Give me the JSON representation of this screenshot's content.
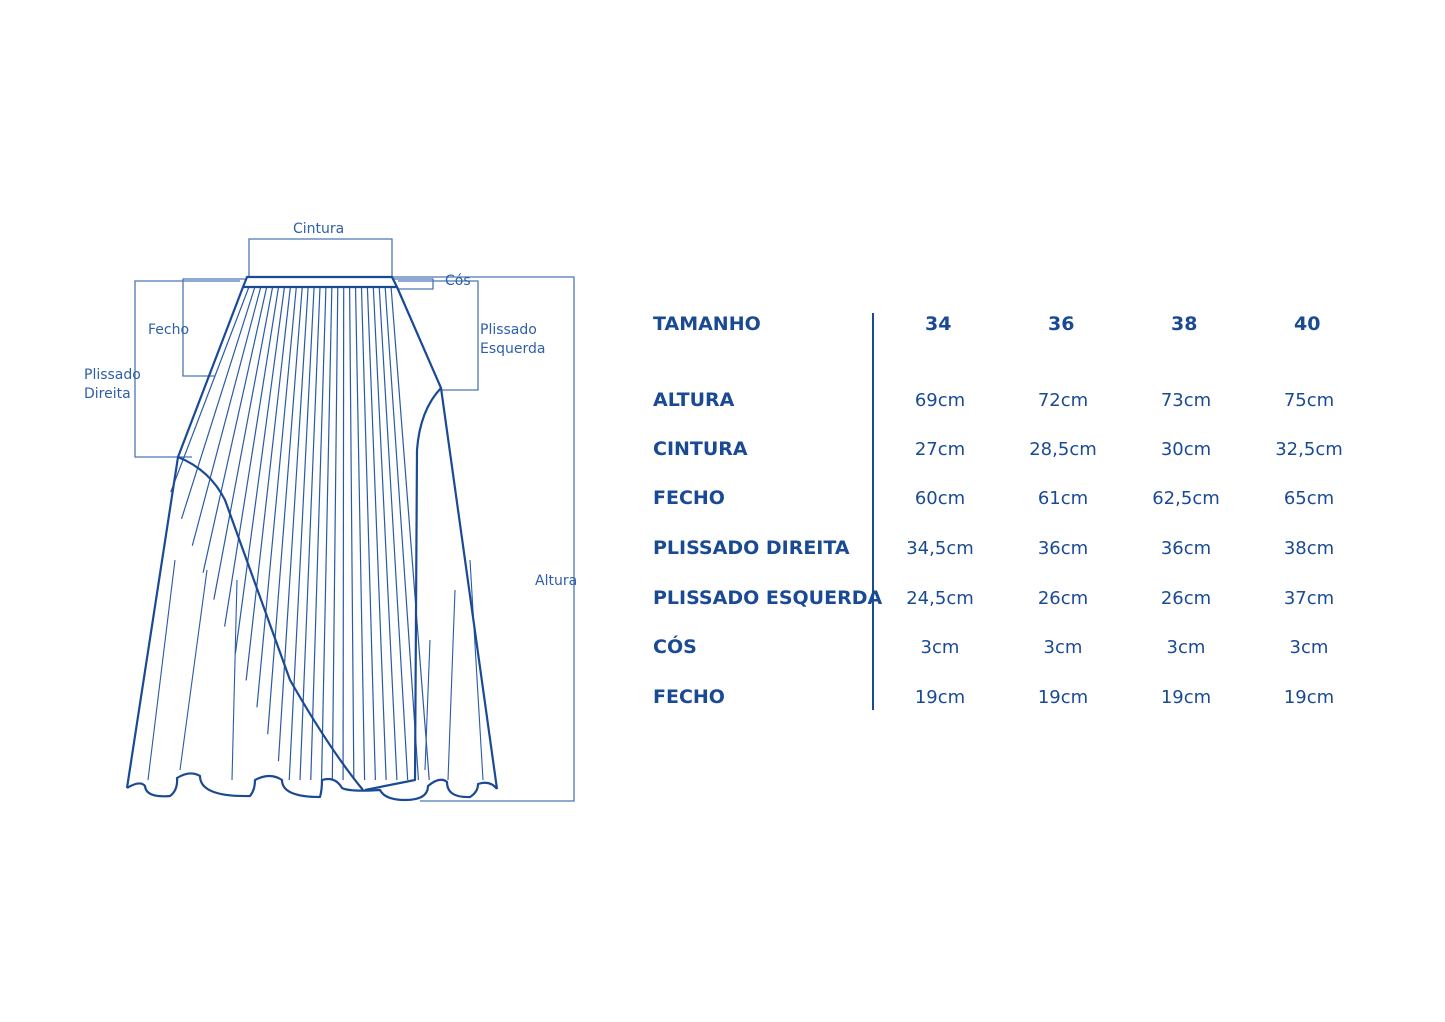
{
  "colors": {
    "primary": "#1a4a94",
    "annotation": "#4a76b8"
  },
  "diagram": {
    "labels": {
      "cintura": "Cintura",
      "cos": "Cós",
      "fecho": "Fecho",
      "plissado_direita": [
        "Plissado",
        "Direita"
      ],
      "plissado_esquerda": [
        "Plissado",
        "Esquerda"
      ],
      "altura": "Altura"
    }
  },
  "table": {
    "header_label": "TAMANHO",
    "sizes": [
      "34",
      "36",
      "38",
      "40"
    ],
    "rows": [
      {
        "label": "ALTURA",
        "values": [
          "69cm",
          "72cm",
          "73cm",
          "75cm"
        ]
      },
      {
        "label": "CINTURA",
        "values": [
          "27cm",
          "28,5cm",
          "30cm",
          "32,5cm"
        ]
      },
      {
        "label": "FECHO",
        "values": [
          "60cm",
          "61cm",
          "62,5cm",
          "65cm"
        ]
      },
      {
        "label": "PLISSADO DIREITA",
        "values": [
          "34,5cm",
          "36cm",
          "36cm",
          "38cm"
        ]
      },
      {
        "label": "PLISSADO ESQUERDA",
        "values": [
          "24,5cm",
          "26cm",
          "26cm",
          "37cm"
        ]
      },
      {
        "label": "CÓS",
        "values": [
          "3cm",
          "3cm",
          "3cm",
          "3cm"
        ]
      },
      {
        "label": "FECHO",
        "values": [
          "19cm",
          "19cm",
          "19cm",
          "19cm"
        ]
      }
    ]
  }
}
